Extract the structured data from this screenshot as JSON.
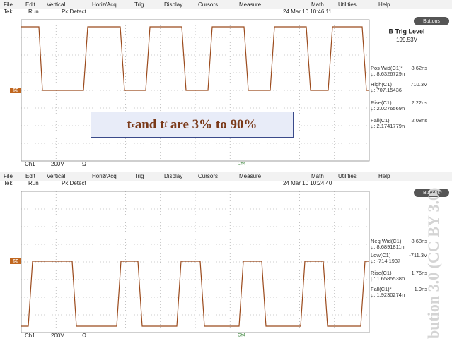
{
  "scopes": [
    {
      "menu": [
        "File",
        "Edit",
        "Vertical",
        "Horiz/Acq",
        "Trig",
        "Display",
        "Cursors",
        "Measure",
        "Math",
        "Utilities",
        "Help"
      ],
      "status": {
        "brand": "Tek",
        "state": "Run",
        "acquisition": "Pk Detect",
        "datetime": "24 Mar 10 10:46:11"
      },
      "button": "Buttons",
      "trigger": {
        "title": "B Trig Level",
        "value": "199.53V"
      },
      "measurements": [
        {
          "label": "Pos Wid(C1)*",
          "value": "8.62ns",
          "mean": "µ: 8.6326729n"
        },
        {
          "label": "High(C1)",
          "value": "710.3V",
          "mean": "µ: 707.15436"
        },
        {
          "label": "Rise(C1)",
          "value": "2.22ns",
          "mean": "µ: 2.0276569n"
        },
        {
          "label": "Fall(C1)",
          "value": "2.08ns",
          "mean": "µ: 2.1741779n"
        }
      ],
      "ground_marker": "SE",
      "footer": {
        "channel": "Ch1",
        "scale": "200V",
        "coupling": "Ω",
        "aux": "Ch4"
      }
    },
    {
      "menu": [
        "File",
        "Edit",
        "Vertical",
        "Horiz/Acq",
        "Trig",
        "Display",
        "Cursors",
        "Measure",
        "Math",
        "Utilities",
        "Help"
      ],
      "status": {
        "brand": "Tek",
        "state": "Run",
        "acquisition": "Pk Detect",
        "datetime": "24 Mar 10 10:24:40"
      },
      "button": "Buttons",
      "measurements": [
        {
          "label": "Neg Wid(C1)",
          "value": "8.68ns",
          "mean": "µ: 8.6891811n"
        },
        {
          "label": "Low(C1)",
          "value": "-711.3V",
          "mean": "µ: -714.1937"
        },
        {
          "label": "Rise(C1)",
          "value": "1.76ns",
          "mean": "µ: 1.6585538n"
        },
        {
          "label": "Fall(C1)*",
          "value": "1.9ns",
          "mean": "µ: 1.9230274n"
        }
      ],
      "ground_marker": "SE",
      "footer": {
        "channel": "Ch1",
        "scale": "200V",
        "coupling": "Ω",
        "aux": "Ch4"
      }
    }
  ],
  "overlay": {
    "parts": [
      "t",
      "r",
      " and t",
      "f",
      " are 3% to 90%"
    ]
  },
  "watermark": "bution 3.0 (CC BY 3.0)"
}
